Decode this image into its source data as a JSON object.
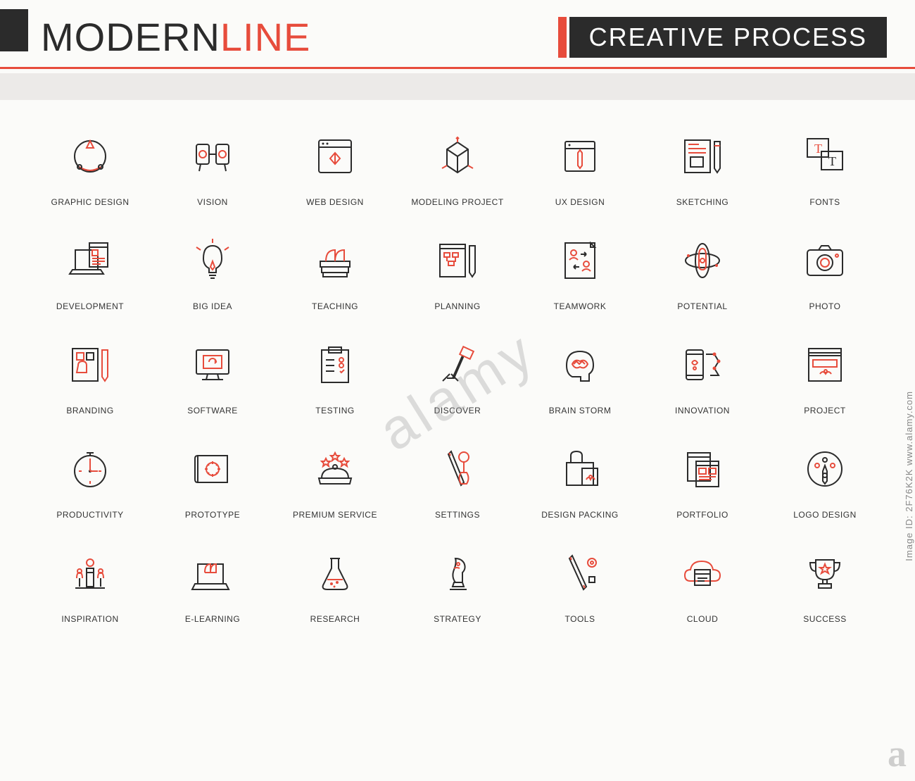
{
  "colors": {
    "black": "#2b2b2b",
    "red": "#e74c3c",
    "bg": "#fbfbf9",
    "band": "#eceae8",
    "label": "#333333",
    "wm": "rgba(160,160,160,0.35)"
  },
  "header": {
    "title_black": "MODERN",
    "title_red": "LINE",
    "subtitle": "CREATIVE PROCESS"
  },
  "watermark": {
    "diagonal": "alamy",
    "side_code": "Image ID: 2F76K2K  www.alamy.com",
    "corner": "a"
  },
  "grid": {
    "columns": 7,
    "rows": 5,
    "icon_stroke_width": 2,
    "label_fontsize": 12
  },
  "icons": [
    {
      "id": "graphic-design",
      "label": "GRAPHIC DESIGN"
    },
    {
      "id": "vision",
      "label": "VISION"
    },
    {
      "id": "web-design",
      "label": "WEB DESIGN"
    },
    {
      "id": "modeling-project",
      "label": "MODELING PROJECT"
    },
    {
      "id": "ux-design",
      "label": "UX DESIGN"
    },
    {
      "id": "sketching",
      "label": "SKETCHING"
    },
    {
      "id": "fonts",
      "label": "FONTS"
    },
    {
      "id": "development",
      "label": "DEVELOPMENT"
    },
    {
      "id": "big-idea",
      "label": "BIG IDEA"
    },
    {
      "id": "teaching",
      "label": "TEACHING"
    },
    {
      "id": "planning",
      "label": "PLANNING"
    },
    {
      "id": "teamwork",
      "label": "TEAMWORK"
    },
    {
      "id": "potential",
      "label": "POTENTIAL"
    },
    {
      "id": "photo",
      "label": "PHOTO"
    },
    {
      "id": "branding",
      "label": "BRANDING"
    },
    {
      "id": "software",
      "label": "SOFTWARE"
    },
    {
      "id": "testing",
      "label": "TESTING"
    },
    {
      "id": "discover",
      "label": "DISCOVER"
    },
    {
      "id": "brain-storm",
      "label": "BRAIN STORM"
    },
    {
      "id": "innovation",
      "label": "INNOVATION"
    },
    {
      "id": "project",
      "label": "PROJECT"
    },
    {
      "id": "productivity",
      "label": "PRODUCTIVITY"
    },
    {
      "id": "prototype",
      "label": "PROTOTYPE"
    },
    {
      "id": "premium-service",
      "label": "PREMIUM SERVICE"
    },
    {
      "id": "settings",
      "label": "SETTINGS"
    },
    {
      "id": "design-packing",
      "label": "DESIGN PACKING"
    },
    {
      "id": "portfolio",
      "label": "PORTFOLIO"
    },
    {
      "id": "logo-design",
      "label": "LOGO DESIGN"
    },
    {
      "id": "inspiration",
      "label": "INSPIRATION"
    },
    {
      "id": "e-learning",
      "label": "E-LEARNING"
    },
    {
      "id": "research",
      "label": "RESEARCH"
    },
    {
      "id": "strategy",
      "label": "STRATEGY"
    },
    {
      "id": "tools",
      "label": "TOOLS"
    },
    {
      "id": "cloud",
      "label": "CLOUD"
    },
    {
      "id": "success",
      "label": "SUCCESS"
    }
  ]
}
